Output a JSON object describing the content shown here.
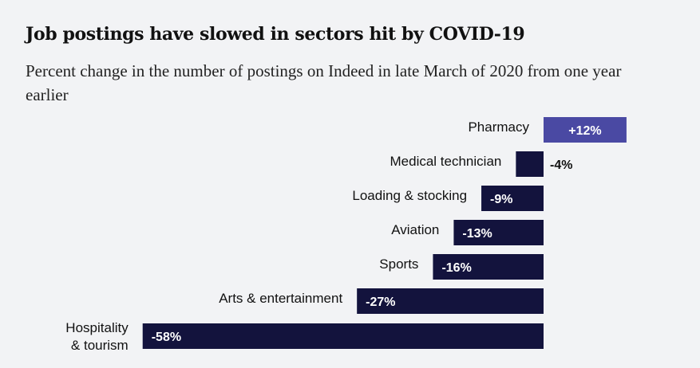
{
  "title": "Job postings have slowed in sectors hit by COVID-19",
  "subtitle": "Percent change in the number of postings on Indeed in late March of 2020 from one year earlier",
  "colors": {
    "negative": "#13133d",
    "positive": "#4a49a3",
    "background": "#f2f3f5",
    "label_inside": "#ffffff",
    "label_outside": "#111111"
  },
  "chart_data": {
    "type": "bar",
    "orientation": "horizontal",
    "categories": [
      [
        "Pharmacy"
      ],
      [
        "Medical technician"
      ],
      [
        "Loading & stocking"
      ],
      [
        "Aviation"
      ],
      [
        "Sports"
      ],
      [
        "Arts & entertainment"
      ],
      [
        "Hospitality",
        "& tourism"
      ]
    ],
    "values": [
      12,
      -4,
      -9,
      -13,
      -16,
      -27,
      -58
    ],
    "value_labels": [
      "+12%",
      "-4%",
      "-9%",
      "-13%",
      "-16%",
      "-27%",
      "-58%"
    ],
    "unit": "%",
    "xlim": [
      -58,
      12
    ],
    "grid": false,
    "legend": "none"
  }
}
